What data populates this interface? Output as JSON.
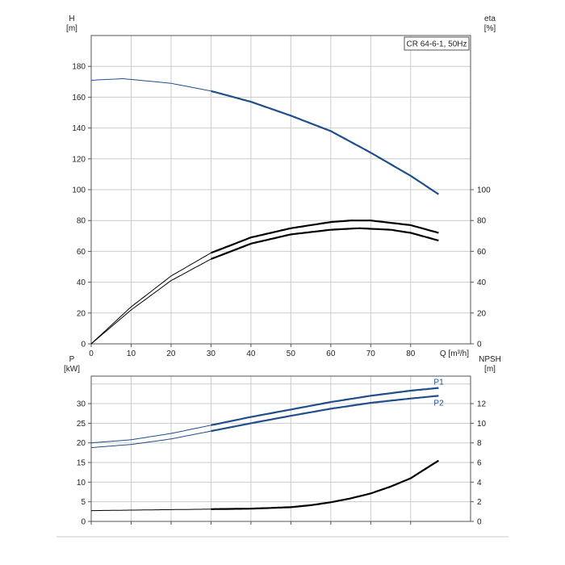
{
  "chart_data": [
    {
      "type": "line",
      "title": "CR 64-6-1, 50Hz",
      "x_axis": {
        "label": "Q [m³/h]",
        "range": [
          0,
          95
        ],
        "ticks": [
          0,
          10,
          20,
          30,
          40,
          50,
          60,
          70,
          80
        ]
      },
      "y_left": {
        "label_line1": "H",
        "label_line2": "[m]",
        "range": [
          0,
          200
        ],
        "ticks": [
          0,
          20,
          40,
          60,
          80,
          100,
          120,
          140,
          160,
          180
        ]
      },
      "y_right": {
        "label_line1": "eta",
        "label_line2": "[%]",
        "range": [
          0,
          200
        ],
        "ticks": [
          0,
          20,
          40,
          60,
          80,
          100
        ]
      },
      "grid": true,
      "operating_range_start_q": 30,
      "series": [
        {
          "key": "head",
          "axis": "left",
          "color": "#1f4e8c",
          "x": [
            0,
            8,
            20,
            30,
            40,
            50,
            60,
            70,
            80,
            87
          ],
          "y": [
            171,
            172,
            169,
            164,
            157,
            148,
            138,
            124,
            109,
            97
          ]
        },
        {
          "key": "eta1",
          "axis": "right",
          "color": "#000000",
          "x": [
            0,
            10,
            20,
            30,
            40,
            50,
            60,
            65,
            70,
            80,
            87
          ],
          "y": [
            0,
            24,
            44,
            59,
            69,
            75,
            79,
            80,
            80,
            77,
            72
          ]
        },
        {
          "key": "eta2",
          "axis": "right",
          "color": "#000000",
          "x": [
            0,
            10,
            20,
            30,
            40,
            50,
            60,
            67,
            75,
            80,
            87
          ],
          "y": [
            0,
            22,
            41,
            55,
            65,
            71,
            74,
            75,
            74,
            72,
            67
          ]
        }
      ]
    },
    {
      "type": "line",
      "x_axis": {
        "range": [
          0,
          95
        ],
        "ticks": [
          0,
          10,
          20,
          30,
          40,
          50,
          60,
          70,
          80
        ]
      },
      "y_left": {
        "label_line1": "P",
        "label_line2": "[kW]",
        "range": [
          0,
          37
        ],
        "ticks": [
          0,
          5,
          10,
          15,
          20,
          25,
          30
        ]
      },
      "y_right": {
        "label_line1": "NPSH",
        "label_line2": "[m]",
        "range": [
          0,
          14.8
        ],
        "ticks": [
          0,
          2,
          4,
          6,
          8,
          10,
          12
        ]
      },
      "grid": true,
      "operating_range_start_q": 30,
      "series": [
        {
          "name": "P1",
          "key": "p1",
          "axis": "left",
          "color": "#1f4e8c",
          "x": [
            0,
            10,
            20,
            30,
            40,
            50,
            60,
            70,
            80,
            87
          ],
          "y": [
            20,
            20.8,
            22.4,
            24.5,
            26.6,
            28.5,
            30.4,
            32,
            33.3,
            34
          ]
        },
        {
          "name": "P2",
          "key": "p2",
          "axis": "left",
          "color": "#1f4e8c",
          "x": [
            0,
            10,
            20,
            30,
            40,
            50,
            60,
            70,
            80,
            87
          ],
          "y": [
            18.8,
            19.6,
            21,
            23,
            25,
            26.9,
            28.7,
            30.2,
            31.3,
            32
          ]
        },
        {
          "key": "npsh",
          "axis": "right",
          "color": "#000000",
          "x": [
            0,
            10,
            20,
            30,
            40,
            50,
            55,
            60,
            65,
            70,
            75,
            80,
            87
          ],
          "y": [
            1.1,
            1.15,
            1.2,
            1.25,
            1.3,
            1.45,
            1.65,
            1.95,
            2.35,
            2.85,
            3.55,
            4.4,
            6.2
          ]
        }
      ]
    }
  ]
}
